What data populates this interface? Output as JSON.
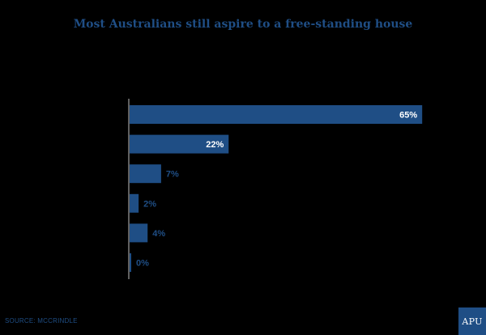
{
  "chart_data": {
    "type": "bar",
    "orientation": "horizontal",
    "title": "Most Australians still aspire to a free-standing house",
    "values": [
      65,
      22,
      7,
      2,
      4,
      0
    ],
    "value_labels": [
      "65%",
      "22%",
      "7%",
      "2%",
      "4%",
      "0%"
    ],
    "xlim": [
      0,
      70
    ],
    "grid": false,
    "legend": "none",
    "bar_color": "#1f4e85"
  },
  "source": "SOURCE: MCCRINDLE",
  "logo": "APU",
  "colors": {
    "background": "#000000",
    "accent": "#1f4e85",
    "label_inside": "#ffffff"
  }
}
